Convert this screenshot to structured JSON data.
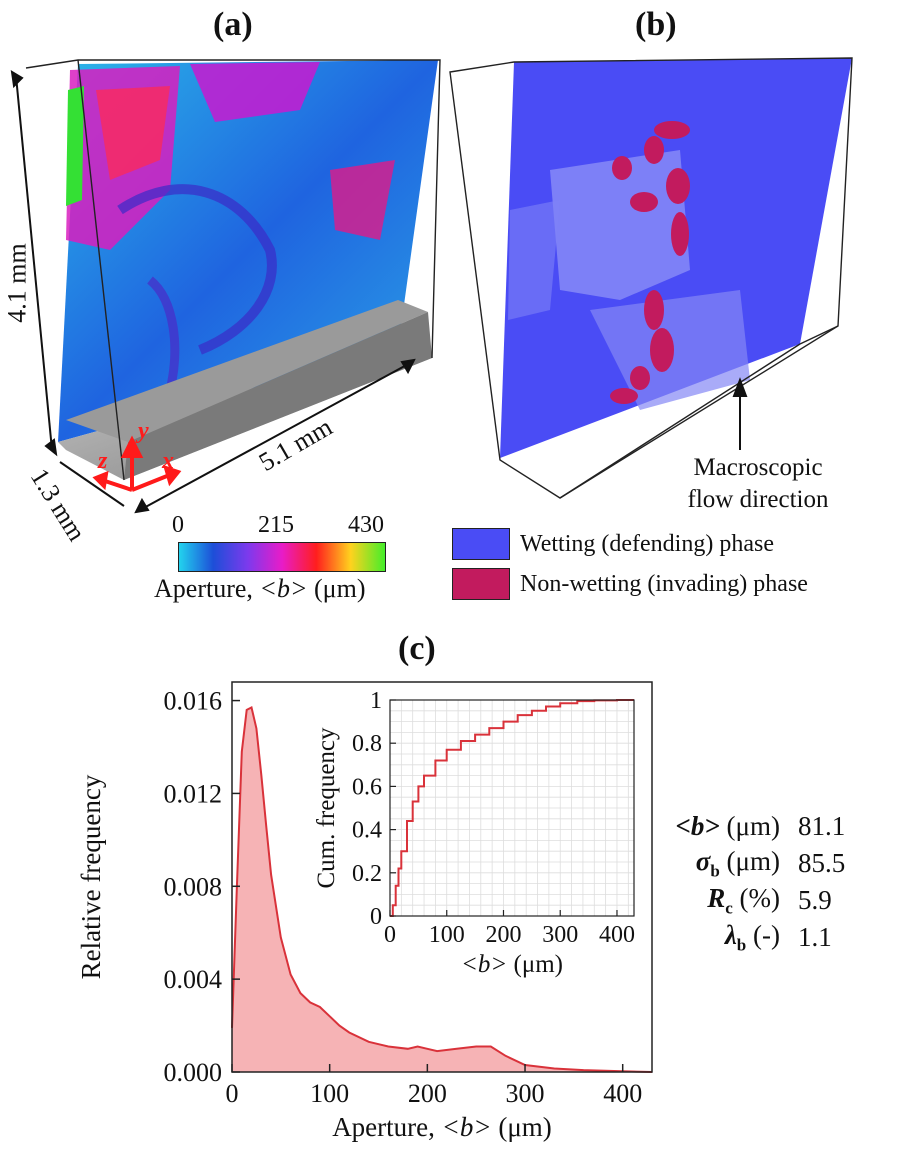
{
  "panels": {
    "a": {
      "label": "(a)"
    },
    "b": {
      "label": "(b)"
    },
    "c": {
      "label": "(c)"
    }
  },
  "panel_a": {
    "dim_height": "4.1 mm",
    "dim_length": "5.1 mm",
    "dim_depth": "1.3 mm",
    "axes": {
      "x": "x",
      "y": "y",
      "z": "z"
    },
    "colorbar": {
      "ticks": [
        "0",
        "215",
        "430"
      ],
      "label_prefix": "Aperture, ",
      "label_var": "<b>",
      "label_suffix": " (μm)",
      "colors": [
        "#22d3ee",
        "#1d4ed8",
        "#7c3aed",
        "#e81cc8",
        "#ff1e1e",
        "#ffd21e",
        "#44ee2a"
      ]
    }
  },
  "panel_b": {
    "flow_label_line1": "Macroscopic",
    "flow_label_line2": "flow direction",
    "legend": [
      {
        "label": "Wetting (defending) phase",
        "color": "#4a4cf5"
      },
      {
        "label": "Non-wetting (invading) phase",
        "color": "#c21b5e"
      }
    ]
  },
  "stats": [
    {
      "symbol": "<b>",
      "unit": "(μm)",
      "value": "81.1"
    },
    {
      "symbol": "σ",
      "sub": "b",
      "unit": "(μm)",
      "value": "85.5"
    },
    {
      "symbol": "R",
      "sub": "c",
      "unit": "(%)",
      "value": "5.9"
    },
    {
      "symbol": "λ",
      "sub": "b",
      "unit": "(-)",
      "value": "1.1"
    }
  ],
  "chart_data": [
    {
      "type": "area",
      "xlabel_prefix": "Aperture, ",
      "xlabel_var": "<b>",
      "xlabel_suffix": " (μm)",
      "ylabel": "Relative frequency",
      "xlim": [
        0,
        430
      ],
      "ylim": [
        0,
        0.0168
      ],
      "xticks": [
        "0",
        "100",
        "200",
        "300",
        "400"
      ],
      "yticks": [
        "0.000",
        "0.004",
        "0.008",
        "0.012",
        "0.016"
      ],
      "color": "#d9323a",
      "fill": "#f6b3b5",
      "x": [
        0,
        5,
        10,
        15,
        20,
        25,
        30,
        35,
        40,
        50,
        60,
        70,
        80,
        90,
        100,
        110,
        120,
        140,
        160,
        180,
        190,
        200,
        210,
        230,
        250,
        265,
        280,
        300,
        330,
        360,
        400,
        430
      ],
      "y": [
        0.0019,
        0.008,
        0.0138,
        0.0156,
        0.0157,
        0.0148,
        0.0128,
        0.0106,
        0.0085,
        0.0058,
        0.0042,
        0.0034,
        0.003,
        0.0028,
        0.0024,
        0.002,
        0.0017,
        0.0013,
        0.0011,
        0.001,
        0.0011,
        0.001,
        0.0009,
        0.001,
        0.0011,
        0.0011,
        0.0007,
        0.0003,
        0.00015,
        8e-05,
        3e-05,
        0.0
      ]
    },
    {
      "type": "line",
      "xlabel_var": "<b>",
      "xlabel_suffix": " (μm)",
      "ylabel": "Cum. frequency",
      "xlim": [
        0,
        430
      ],
      "ylim": [
        0,
        1
      ],
      "xticks": [
        "0",
        "100",
        "200",
        "300",
        "400"
      ],
      "yticks": [
        "0",
        "0.2",
        "0.4",
        "0.6",
        "0.8",
        "1"
      ],
      "color": "#d9323a",
      "x": [
        0,
        5,
        10,
        15,
        20,
        30,
        40,
        50,
        60,
        80,
        100,
        125,
        150,
        175,
        200,
        225,
        250,
        275,
        300,
        330,
        360,
        400,
        430
      ],
      "y": [
        0,
        0.05,
        0.14,
        0.22,
        0.3,
        0.44,
        0.53,
        0.6,
        0.65,
        0.72,
        0.77,
        0.81,
        0.84,
        0.87,
        0.9,
        0.93,
        0.95,
        0.97,
        0.985,
        0.995,
        0.998,
        1.0,
        1.0
      ]
    }
  ]
}
